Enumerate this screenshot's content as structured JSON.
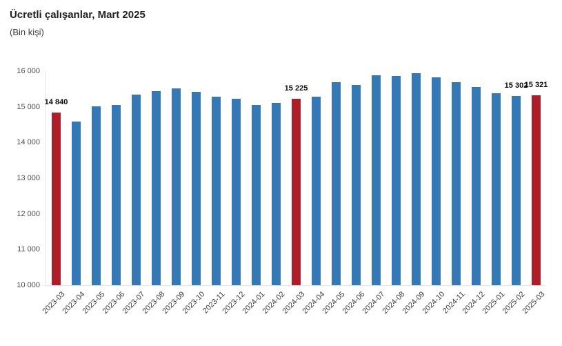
{
  "chart_data": {
    "type": "bar",
    "title": "Ücretli çalışanlar, Mart 2025",
    "subtitle": "(Bin kişi)",
    "xlabel": "",
    "ylabel": "",
    "ylim": [
      10000,
      16000
    ],
    "grid": false,
    "legend": false,
    "categories": [
      "2023-03",
      "2023-04",
      "2023-05",
      "2023-06",
      "2023-07",
      "2023-08",
      "2023-09",
      "2023-10",
      "2023-11",
      "2023-12",
      "2024-01",
      "2024-02",
      "2024-03",
      "2024-04",
      "2024-05",
      "2024-06",
      "2024-07",
      "2024-08",
      "2024-09",
      "2024-10",
      "2024-11",
      "2024-12",
      "2025-01",
      "2025-02",
      "2025-03"
    ],
    "values": [
      14840,
      14590,
      15010,
      15060,
      15340,
      15440,
      15510,
      15410,
      15290,
      15230,
      15060,
      15110,
      15225,
      15280,
      15690,
      15610,
      15890,
      15870,
      15950,
      15830,
      15700,
      15550,
      15390,
      15302,
      15321
    ],
    "highlighted_indices": [
      0,
      12,
      24
    ],
    "data_labels": {
      "0": "14 840",
      "12": "15 225",
      "23": "15 302",
      "24": "15 321"
    },
    "yticks": [
      {
        "label": "16 000",
        "value": 16000
      },
      {
        "label": "15 000",
        "value": 15000
      },
      {
        "label": "14 000",
        "value": 14000
      },
      {
        "label": "13 000",
        "value": 13000
      },
      {
        "label": "12 000",
        "value": 12000
      },
      {
        "label": "11 000",
        "value": 11000
      },
      {
        "label": "10 000",
        "value": 10000
      }
    ],
    "colors": {
      "bar": "#3478B5",
      "bar_highlight": "#AD1E28",
      "axis_line": "#e6e6e6",
      "tick_text": "#3d3d3d",
      "data_label_text": "#0a0a0a"
    }
  }
}
